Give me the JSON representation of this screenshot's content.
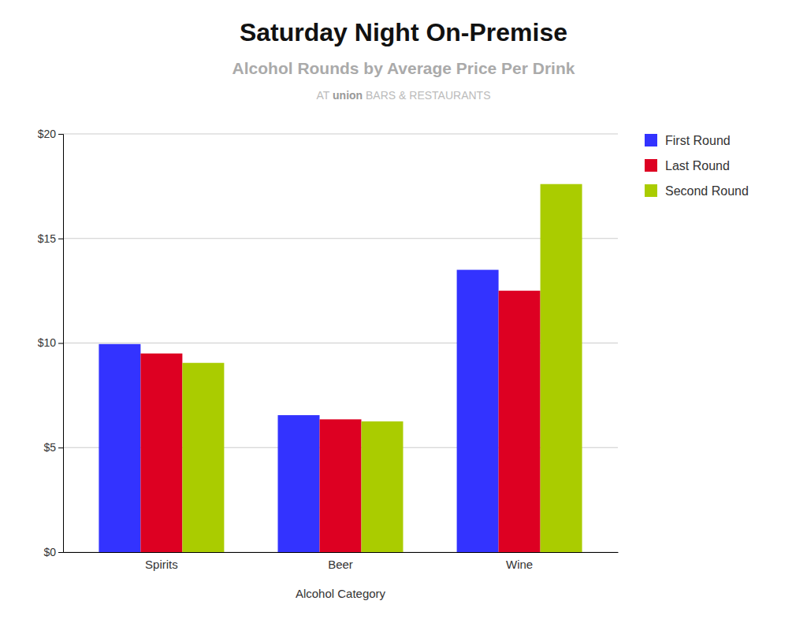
{
  "chart_data": {
    "type": "bar",
    "title": "Saturday Night On-Premise",
    "subtitle": "Alcohol Rounds by Average Price Per Drink",
    "annotations": [
      "AT ",
      "union",
      " BARS & RESTAURANTS"
    ],
    "x_label": "Alcohol Category",
    "categories": [
      "Spirits",
      "Beer",
      "Wine"
    ],
    "series": [
      {
        "name": "First Round",
        "color": "#3333ff",
        "values": [
          9.95,
          6.55,
          13.5
        ]
      },
      {
        "name": "Last Round",
        "color": "#dd0022",
        "values": [
          9.5,
          6.35,
          12.5
        ]
      },
      {
        "name": "Second Round",
        "color": "#aacc00",
        "values": [
          9.05,
          6.25,
          17.6
        ]
      }
    ],
    "ylim": [
      0,
      20
    ],
    "yticks": [
      {
        "value": 0,
        "label": "$0"
      },
      {
        "value": 5,
        "label": "$5"
      },
      {
        "value": 10,
        "label": "$10"
      },
      {
        "value": 15,
        "label": "$15"
      },
      {
        "value": 20,
        "label": "$20"
      }
    ],
    "grid": true,
    "legend": "upper right"
  }
}
